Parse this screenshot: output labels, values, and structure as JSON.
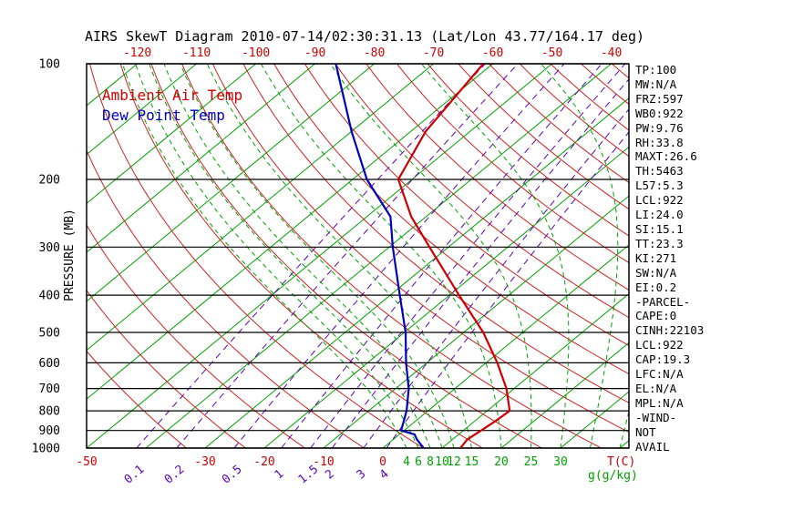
{
  "title": "AIRS SkewT Diagram 2010-07-14/02:30:31.13 (Lat/Lon 43.77/164.17 deg)",
  "legend": {
    "air_temp_label": "Ambient Air Temp",
    "dew_point_label": "Dew Point Temp"
  },
  "colors": {
    "air_temp": "#cc0000",
    "dew_point": "#0000bb",
    "isotherm": "#00a000",
    "dry_adiabat": "#cc2222",
    "moist_adiabat": "#00a000",
    "mixing_ratio": "#5b00b5",
    "axis": "#000000"
  },
  "axes": {
    "pressure_label": "PRESSURE (MB)",
    "pressure_ticks": [
      100,
      200,
      300,
      400,
      500,
      600,
      700,
      800,
      900,
      1000
    ],
    "top_temp_ticks_c": [
      -120,
      -110,
      -100,
      -90,
      -80,
      -70,
      -60,
      -50,
      -40
    ],
    "bottom_temp_ticks_c": [
      -50,
      -30,
      -20,
      -10,
      0
    ],
    "temp_unit_label": "T(C)",
    "mixing_ratio_unit_label": "g(g/kg)",
    "mixing_ratio_tick_labels": [
      0.1,
      0.2,
      0.5,
      1,
      1.5,
      2,
      3,
      4
    ],
    "moist_adiabat_tick_labels": [
      4,
      6,
      8,
      10,
      12,
      15,
      20,
      25,
      30
    ]
  },
  "stats_panel": {
    "items": [
      "TP:100",
      "MW:N/A",
      "FRZ:597",
      "WB0:922",
      "PW:9.76",
      "RH:33.8",
      "MAXT:26.6",
      "TH:5463",
      "L57:5.3",
      "LCL:922",
      "LI:24.0",
      "SI:15.1",
      "TT:23.3",
      "KI:271",
      "SW:N/A",
      "EI:0.2",
      "-PARCEL-",
      "CAPE:0",
      "CINH:22103",
      "LCL:922",
      "CAP:19.3",
      "LFC:N/A",
      "EL:N/A",
      "MPL:N/A",
      "-WIND-",
      "NOT",
      "AVAIL"
    ]
  },
  "chart_data": {
    "type": "line",
    "title": "AIRS SkewT Diagram 2010-07-14/02:30:31.13 (Lat/Lon 43.77/164.17 deg)",
    "xlabel": "T(C)",
    "ylabel": "PRESSURE (MB)",
    "y_scale": "log",
    "y_range": [
      100,
      1000
    ],
    "series": [
      {
        "name": "Ambient Air Temp",
        "color": "#cc0000",
        "points_p_t": [
          [
            100,
            -61.6
          ],
          [
            150,
            -57.5
          ],
          [
            200,
            -52.3
          ],
          [
            250,
            -42.5
          ],
          [
            300,
            -33.2
          ],
          [
            400,
            -18.4
          ],
          [
            500,
            -6.7
          ],
          [
            600,
            1.9
          ],
          [
            700,
            8.7
          ],
          [
            800,
            13.8
          ],
          [
            850,
            13.5
          ],
          [
            900,
            13.0
          ],
          [
            950,
            12.5
          ],
          [
            1000,
            13.1
          ]
        ]
      },
      {
        "name": "Dew Point Temp",
        "color": "#0000bb",
        "points_p_t": [
          [
            100,
            -86.5
          ],
          [
            150,
            -70.0
          ],
          [
            200,
            -57.6
          ],
          [
            250,
            -46.0
          ],
          [
            300,
            -39.4
          ],
          [
            400,
            -28.4
          ],
          [
            500,
            -19.8
          ],
          [
            600,
            -13.5
          ],
          [
            700,
            -7.8
          ],
          [
            800,
            -3.6
          ],
          [
            850,
            -2.0
          ],
          [
            900,
            -0.5
          ],
          [
            922,
            2.6
          ],
          [
            950,
            4.0
          ],
          [
            1000,
            6.9
          ]
        ]
      }
    ],
    "grid": {
      "isotherms_c": [
        -130,
        -120,
        -110,
        -100,
        -90,
        -80,
        -70,
        -60,
        -50,
        -40,
        -30,
        -20,
        -10,
        0,
        10,
        20,
        30,
        40
      ],
      "dry_adiabats_theta_k": [
        240,
        250,
        260,
        270,
        280,
        290,
        300,
        310,
        320,
        330,
        340,
        350,
        360,
        370,
        380,
        390,
        400,
        410,
        420,
        430,
        440,
        450
      ],
      "moist_adiabats_start_c": [
        4,
        6,
        8,
        10,
        12,
        15,
        20,
        25,
        30,
        35,
        40,
        45,
        50
      ],
      "mixing_ratio_g_kg": [
        0.1,
        0.2,
        0.5,
        1,
        1.5,
        2,
        3,
        4
      ]
    }
  }
}
